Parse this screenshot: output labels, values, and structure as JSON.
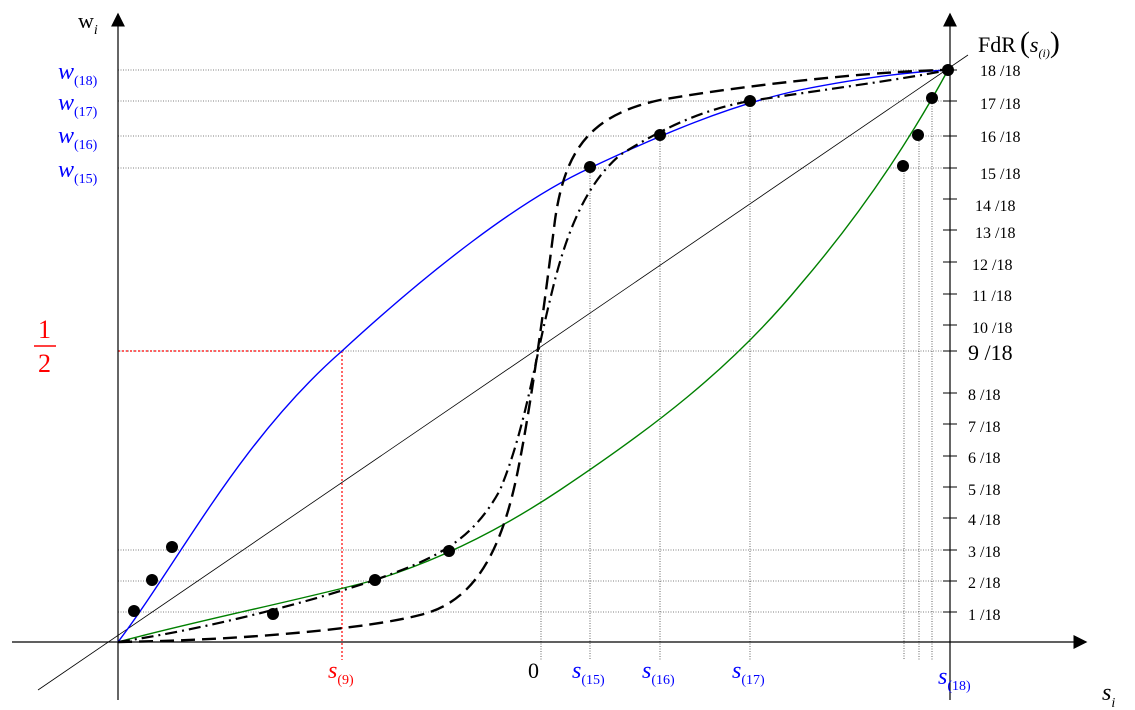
{
  "labels": {
    "y_axis": "w",
    "y_axis_sub": "i",
    "x_axis": "s",
    "x_axis_sub": "i",
    "right_axis": "FdR",
    "right_axis_arg": "s",
    "right_axis_arg_sub": "(i)",
    "half_num": "1",
    "half_den": "2",
    "zero": "0"
  },
  "w_labels": [
    {
      "base": "w",
      "sub": "(18)"
    },
    {
      "base": "w",
      "sub": "(17)"
    },
    {
      "base": "w",
      "sub": "(16)"
    },
    {
      "base": "w",
      "sub": "(15)"
    }
  ],
  "s_labels": [
    {
      "base": "s",
      "sub": "(9)"
    },
    {
      "base": "s",
      "sub": "(15)"
    },
    {
      "base": "s",
      "sub": "(16)"
    },
    {
      "base": "s",
      "sub": "(17)"
    },
    {
      "base": "s",
      "sub": "(18)"
    }
  ],
  "fdr_ticks": [
    "18 /18",
    "17 /18",
    "16 /18",
    "15 /18",
    "14 /18",
    "13 /18",
    "12 /18",
    "11 /18",
    "10 /18",
    "9 /18",
    "8 /18",
    "7 /18",
    "6 /18",
    "5 /18",
    "4 /18",
    "3 /18",
    "2 /18",
    "1 /18"
  ],
  "colors": {
    "blue_curve": "#0000ff",
    "green_curve": "#008000",
    "red_guide": "#ff0000",
    "black": "#000000"
  }
}
